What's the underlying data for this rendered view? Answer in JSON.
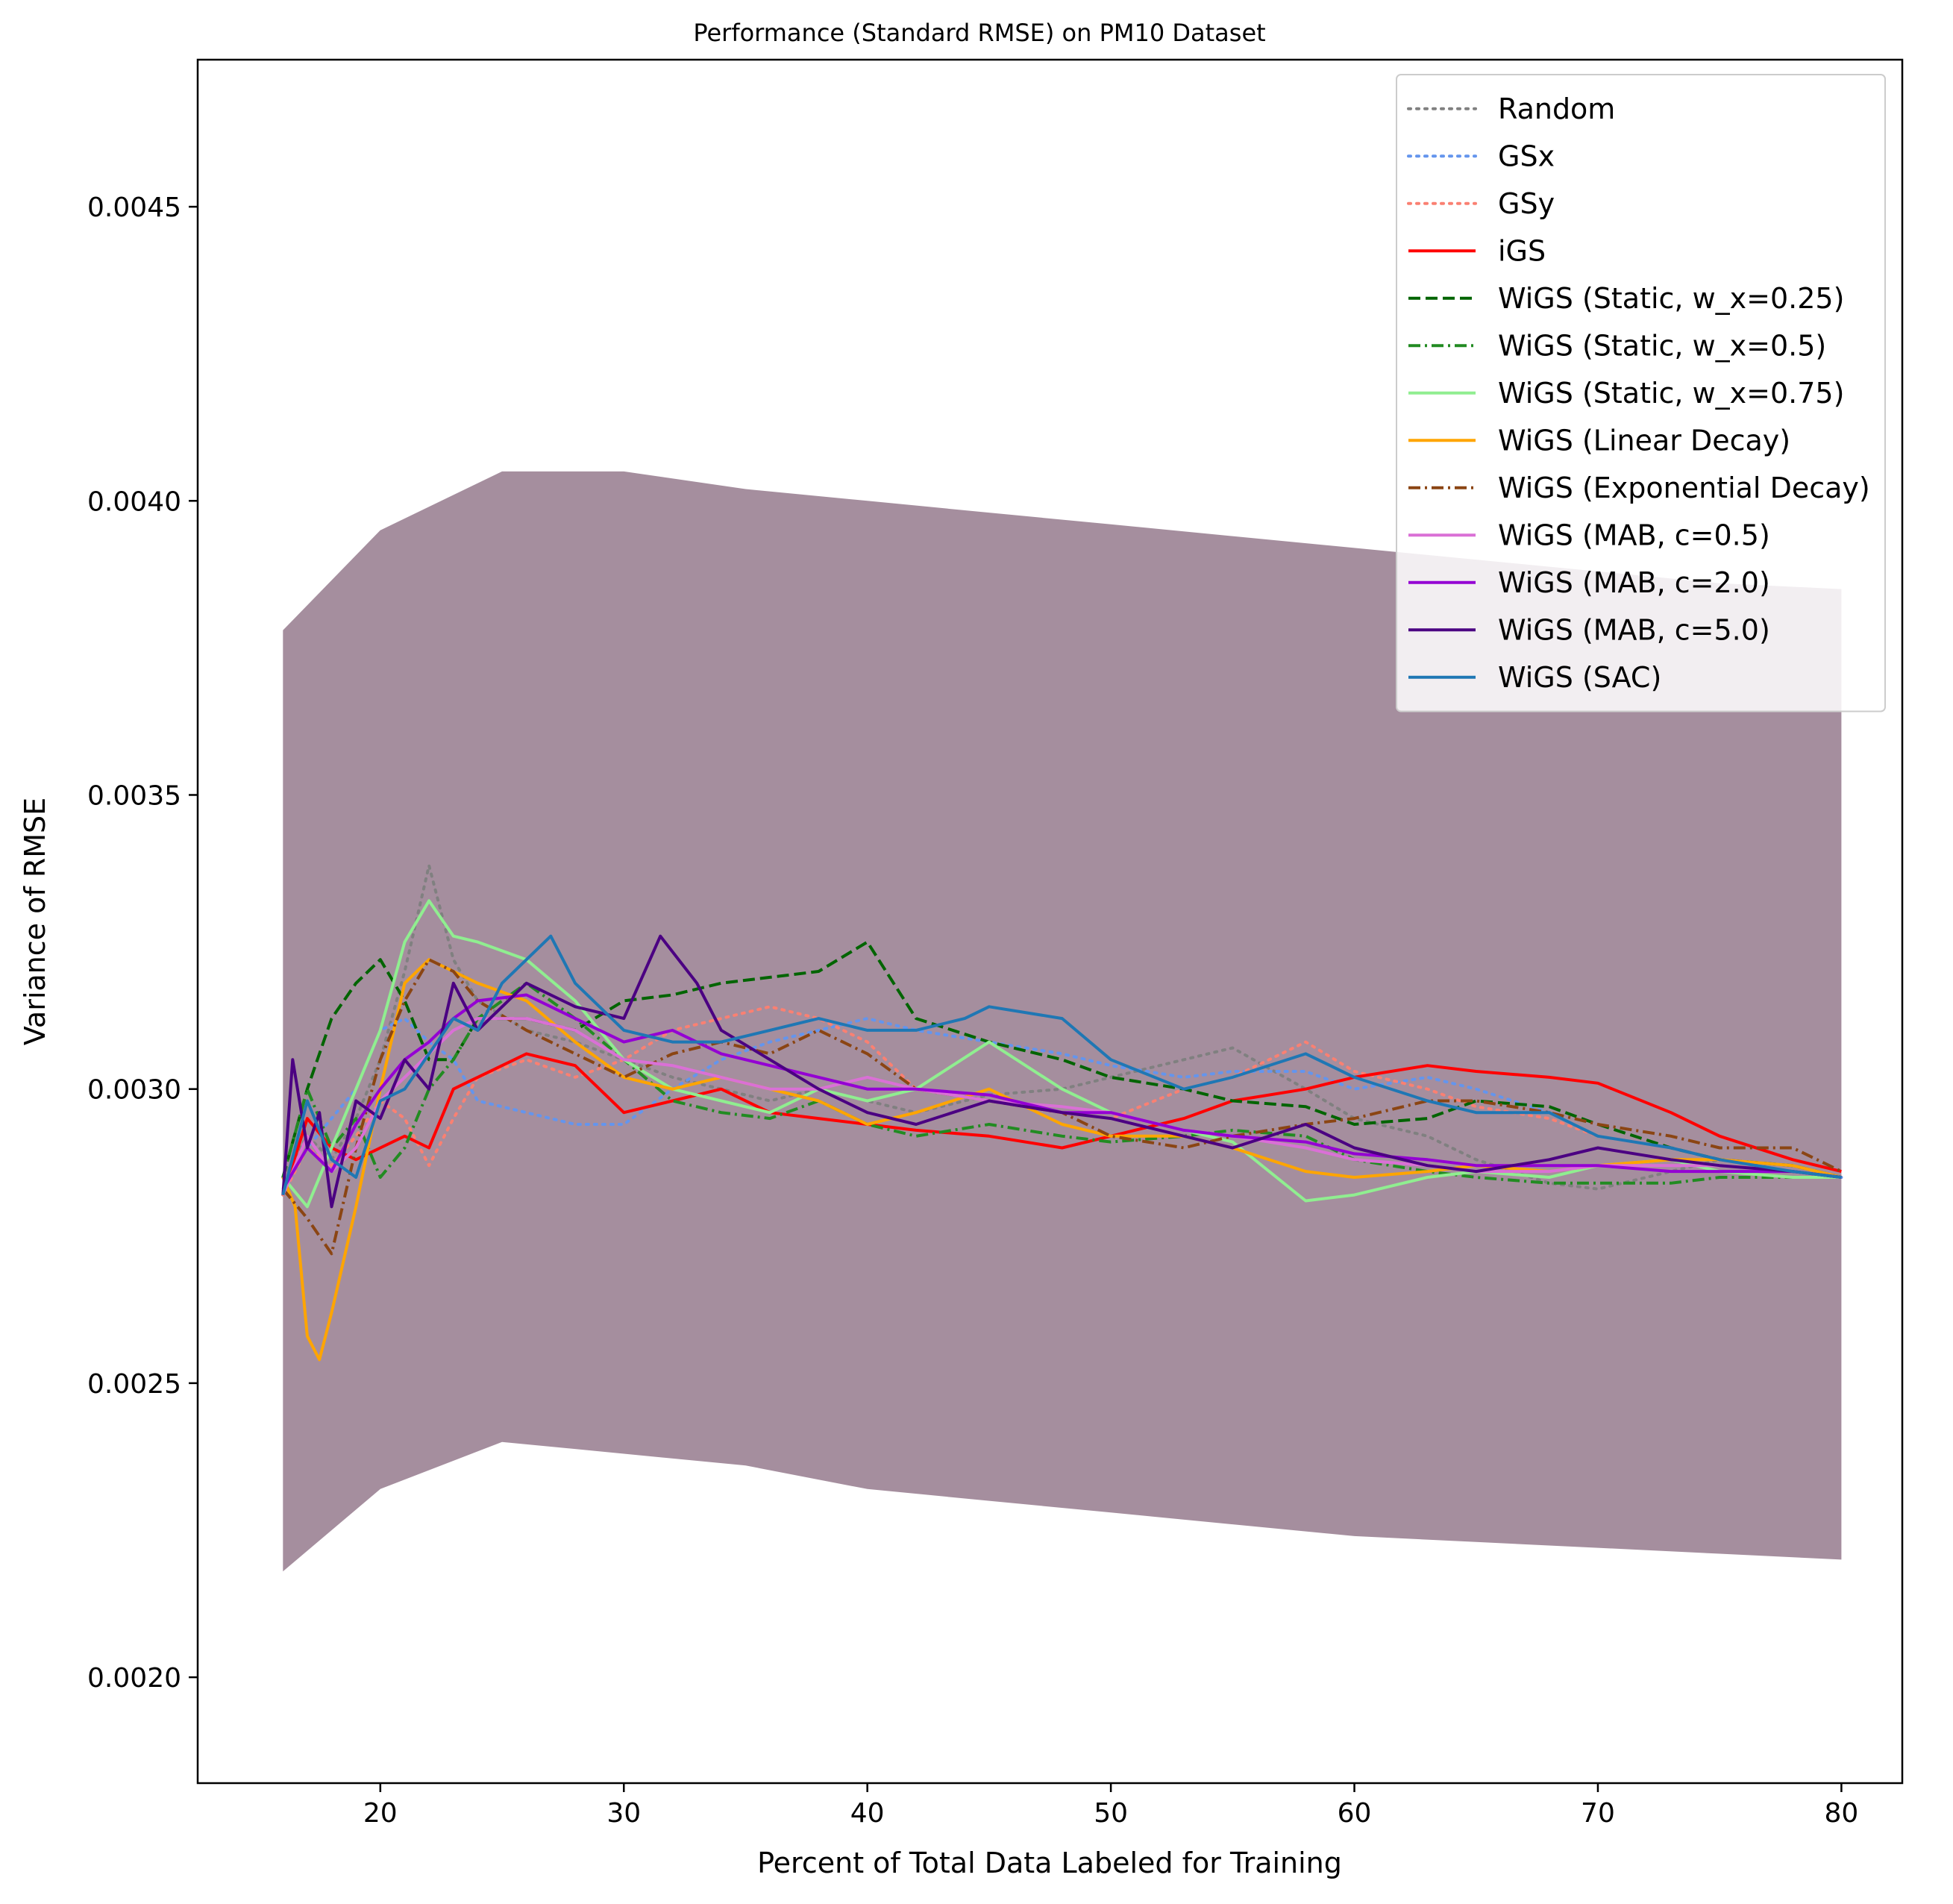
{
  "chart_data": {
    "type": "line",
    "title": "Performance (Standard RMSE) on PM10 Dataset",
    "xlabel": "Percent of Total Data Labeled for Training",
    "ylabel": "Variance of RMSE",
    "xlim": [
      12.5,
      82.5
    ],
    "ylim": [
      0.00182,
      0.00475
    ],
    "xticks": [
      20,
      30,
      40,
      50,
      60,
      70,
      80
    ],
    "xtick_labels": [
      "20",
      "30",
      "40",
      "50",
      "60",
      "70",
      "80"
    ],
    "yticks": [
      0.002,
      0.0025,
      0.003,
      0.0035,
      0.004,
      0.0045
    ],
    "ytick_labels": [
      "0.0020",
      "0.0025",
      "0.0030",
      "0.0035",
      "0.0040",
      "0.0045"
    ],
    "grid": false,
    "legend_position": "top-right",
    "band": {
      "x": [
        16,
        20,
        25,
        30,
        35,
        40,
        45,
        50,
        55,
        60,
        65,
        70,
        75,
        80
      ],
      "lower": [
        0.00218,
        0.00232,
        0.0024,
        0.00238,
        0.00236,
        0.00232,
        0.0023,
        0.00228,
        0.00226,
        0.00224,
        0.00223,
        0.00222,
        0.00221,
        0.0022
      ],
      "upper": [
        0.00378,
        0.00395,
        0.00405,
        0.00405,
        0.00402,
        0.004,
        0.00398,
        0.00396,
        0.00394,
        0.00392,
        0.0039,
        0.00388,
        0.00386,
        0.00385
      ],
      "color": "#9b8294"
    },
    "series": [
      {
        "name": "Random",
        "color": "#808080",
        "dash": "dot",
        "x": [
          16,
          17,
          18,
          19,
          20,
          21,
          22,
          23,
          24,
          26,
          28,
          30,
          32,
          34,
          36,
          38,
          40,
          42,
          45,
          48,
          50,
          53,
          55,
          58,
          60,
          63,
          65,
          68,
          70,
          73,
          75,
          78,
          80
        ],
        "y": [
          0.00285,
          0.00292,
          0.00288,
          0.00295,
          0.00305,
          0.0032,
          0.00338,
          0.00322,
          0.00315,
          0.0031,
          0.00308,
          0.00305,
          0.00302,
          0.003,
          0.00298,
          0.003,
          0.00298,
          0.00296,
          0.00299,
          0.003,
          0.00302,
          0.00305,
          0.00307,
          0.003,
          0.00295,
          0.00292,
          0.00288,
          0.00284,
          0.00283,
          0.00286,
          0.00288,
          0.00287,
          0.00285
        ]
      },
      {
        "name": "GSx",
        "color": "#6495ed",
        "dash": "dot",
        "x": [
          16,
          17,
          18,
          19,
          20,
          21,
          22,
          23,
          24,
          26,
          28,
          30,
          32,
          34,
          36,
          38,
          40,
          42,
          45,
          48,
          50,
          53,
          55,
          58,
          60,
          63,
          65,
          68,
          70,
          73,
          75,
          78,
          80
        ],
        "y": [
          0.00282,
          0.0029,
          0.00295,
          0.003,
          0.0031,
          0.00312,
          0.00308,
          0.00305,
          0.00298,
          0.00296,
          0.00294,
          0.00294,
          0.003,
          0.00305,
          0.00308,
          0.0031,
          0.00312,
          0.0031,
          0.00308,
          0.00306,
          0.00304,
          0.00302,
          0.00303,
          0.00303,
          0.003,
          0.00302,
          0.003,
          0.00296,
          0.00292,
          0.0029,
          0.00288,
          0.00286,
          0.00285
        ]
      },
      {
        "name": "GSy",
        "color": "#fa8072",
        "dash": "dot",
        "x": [
          16,
          17,
          18,
          19,
          20,
          21,
          22,
          23,
          24,
          26,
          28,
          30,
          32,
          34,
          36,
          38,
          40,
          42,
          45,
          48,
          50,
          53,
          55,
          58,
          60,
          63,
          65,
          68,
          70,
          73,
          75,
          78,
          80
        ],
        "y": [
          0.00282,
          0.0029,
          0.00287,
          0.00292,
          0.00298,
          0.00295,
          0.00287,
          0.00295,
          0.00302,
          0.00305,
          0.00302,
          0.00305,
          0.0031,
          0.00312,
          0.00314,
          0.00312,
          0.00308,
          0.003,
          0.00298,
          0.00296,
          0.00295,
          0.003,
          0.00302,
          0.00308,
          0.00303,
          0.003,
          0.00297,
          0.00295,
          0.00292,
          0.0029,
          0.00288,
          0.00286,
          0.00285
        ]
      },
      {
        "name": "iGS",
        "color": "#ff0000",
        "dash": "solid",
        "x": [
          16,
          17,
          18,
          19,
          20,
          21,
          22,
          23,
          24,
          26,
          28,
          30,
          32,
          34,
          36,
          38,
          40,
          42,
          45,
          48,
          50,
          53,
          55,
          58,
          60,
          63,
          65,
          68,
          70,
          73,
          75,
          78,
          80
        ],
        "y": [
          0.00282,
          0.00295,
          0.0029,
          0.00288,
          0.0029,
          0.00292,
          0.0029,
          0.003,
          0.00302,
          0.00306,
          0.00304,
          0.00296,
          0.00298,
          0.003,
          0.00296,
          0.00295,
          0.00294,
          0.00293,
          0.00292,
          0.0029,
          0.00292,
          0.00295,
          0.00298,
          0.003,
          0.00302,
          0.00304,
          0.00303,
          0.00302,
          0.00301,
          0.00296,
          0.00292,
          0.00288,
          0.00286
        ]
      },
      {
        "name": "WiGS (Static, w_x=0.25)",
        "color": "#006400",
        "dash": "dashed",
        "x": [
          16,
          17,
          18,
          19,
          20,
          21,
          22,
          23,
          24,
          26,
          28,
          30,
          32,
          34,
          36,
          38,
          40,
          42,
          45,
          48,
          50,
          53,
          55,
          58,
          60,
          63,
          65,
          68,
          70,
          73,
          75,
          78,
          80
        ],
        "y": [
          0.00285,
          0.003,
          0.00312,
          0.00318,
          0.00322,
          0.00315,
          0.00305,
          0.00305,
          0.00312,
          0.00312,
          0.0031,
          0.00315,
          0.00316,
          0.00318,
          0.00319,
          0.0032,
          0.00325,
          0.00312,
          0.00308,
          0.00305,
          0.00302,
          0.003,
          0.00298,
          0.00297,
          0.00294,
          0.00295,
          0.00298,
          0.00297,
          0.00294,
          0.0029,
          0.00288,
          0.00287,
          0.00285
        ]
      },
      {
        "name": "WiGS (Static, w_x=0.5)",
        "color": "#228b22",
        "dash": "dashdot",
        "x": [
          16,
          17,
          18,
          19,
          20,
          21,
          22,
          23,
          24,
          26,
          28,
          30,
          32,
          34,
          36,
          38,
          40,
          42,
          45,
          48,
          50,
          53,
          55,
          58,
          60,
          63,
          65,
          68,
          70,
          73,
          75,
          78,
          80
        ],
        "y": [
          0.00285,
          0.003,
          0.0029,
          0.00295,
          0.00285,
          0.0029,
          0.003,
          0.00305,
          0.00312,
          0.00318,
          0.00312,
          0.00305,
          0.00298,
          0.00296,
          0.00295,
          0.00298,
          0.00294,
          0.00292,
          0.00294,
          0.00292,
          0.00291,
          0.00292,
          0.00293,
          0.00292,
          0.00288,
          0.00286,
          0.00285,
          0.00284,
          0.00284,
          0.00284,
          0.00285,
          0.00285,
          0.00285
        ]
      },
      {
        "name": "WiGS (Static, w_x=0.75)",
        "color": "#90ee90",
        "dash": "solid",
        "x": [
          16,
          17,
          18,
          19,
          20,
          21,
          22,
          23,
          24,
          26,
          28,
          30,
          32,
          34,
          36,
          38,
          40,
          42,
          45,
          48,
          50,
          53,
          55,
          58,
          60,
          63,
          65,
          68,
          70,
          73,
          75,
          78,
          80
        ],
        "y": [
          0.00285,
          0.0028,
          0.0029,
          0.003,
          0.0031,
          0.00325,
          0.00332,
          0.00326,
          0.00325,
          0.00322,
          0.00315,
          0.00305,
          0.003,
          0.00298,
          0.00296,
          0.003,
          0.00298,
          0.003,
          0.00308,
          0.003,
          0.00296,
          0.00293,
          0.00291,
          0.00281,
          0.00282,
          0.00285,
          0.00286,
          0.00285,
          0.00287,
          0.00288,
          0.00286,
          0.00285,
          0.00285
        ]
      },
      {
        "name": "WiGS (Linear Decay)",
        "color": "#ffa500",
        "dash": "solid",
        "x": [
          16,
          16.5,
          17,
          17.5,
          18,
          19,
          20,
          21,
          22,
          23,
          24,
          26,
          28,
          30,
          32,
          34,
          36,
          38,
          40,
          42,
          45,
          48,
          50,
          53,
          55,
          58,
          60,
          63,
          65,
          68,
          70,
          73,
          75,
          78,
          80
        ],
        "y": [
          0.00285,
          0.0028,
          0.00258,
          0.00254,
          0.00262,
          0.0028,
          0.003,
          0.00318,
          0.00322,
          0.0032,
          0.00318,
          0.00315,
          0.00308,
          0.00302,
          0.003,
          0.00302,
          0.003,
          0.00298,
          0.00294,
          0.00296,
          0.003,
          0.00294,
          0.00292,
          0.00292,
          0.0029,
          0.00286,
          0.00285,
          0.00286,
          0.00287,
          0.00286,
          0.00287,
          0.00288,
          0.00288,
          0.00287,
          0.00285
        ]
      },
      {
        "name": "WiGS (Exponential Decay)",
        "color": "#8b4513",
        "dash": "dashdot",
        "x": [
          16,
          17,
          18,
          19,
          20,
          21,
          22,
          23,
          24,
          26,
          28,
          30,
          32,
          34,
          36,
          38,
          40,
          42,
          45,
          48,
          50,
          53,
          55,
          58,
          60,
          63,
          65,
          68,
          70,
          73,
          75,
          78,
          80
        ],
        "y": [
          0.00283,
          0.00278,
          0.00272,
          0.0029,
          0.00305,
          0.00315,
          0.00322,
          0.0032,
          0.00315,
          0.0031,
          0.00306,
          0.00302,
          0.00306,
          0.00308,
          0.00306,
          0.0031,
          0.00306,
          0.003,
          0.00298,
          0.00296,
          0.00292,
          0.0029,
          0.00292,
          0.00294,
          0.00295,
          0.00298,
          0.00298,
          0.00296,
          0.00294,
          0.00292,
          0.0029,
          0.0029,
          0.00286
        ]
      },
      {
        "name": "WiGS (MAB, c=0.5)",
        "color": "#da70d6",
        "dash": "solid",
        "x": [
          16,
          17,
          18,
          19,
          20,
          21,
          22,
          23,
          24,
          26,
          28,
          30,
          32,
          34,
          36,
          38,
          40,
          42,
          45,
          48,
          50,
          53,
          55,
          58,
          60,
          63,
          65,
          68,
          70,
          73,
          75,
          78,
          80
        ],
        "y": [
          0.00282,
          0.00292,
          0.00286,
          0.0029,
          0.00298,
          0.00302,
          0.00306,
          0.0031,
          0.00312,
          0.00312,
          0.0031,
          0.00305,
          0.00304,
          0.00302,
          0.003,
          0.003,
          0.00302,
          0.003,
          0.00298,
          0.00297,
          0.00296,
          0.00293,
          0.00292,
          0.0029,
          0.00288,
          0.00287,
          0.00286,
          0.00286,
          0.00287,
          0.00287,
          0.00287,
          0.00286,
          0.00285
        ]
      },
      {
        "name": "WiGS (MAB, c=2.0)",
        "color": "#9400d3",
        "dash": "solid",
        "x": [
          16,
          17,
          18,
          19,
          20,
          21,
          22,
          23,
          24,
          26,
          28,
          30,
          32,
          34,
          36,
          38,
          40,
          42,
          45,
          48,
          50,
          53,
          55,
          58,
          60,
          63,
          65,
          68,
          70,
          73,
          75,
          78,
          80
        ],
        "y": [
          0.00283,
          0.0029,
          0.00286,
          0.00294,
          0.003,
          0.00305,
          0.00308,
          0.00312,
          0.00315,
          0.00316,
          0.00312,
          0.00308,
          0.0031,
          0.00306,
          0.00304,
          0.00302,
          0.003,
          0.003,
          0.00299,
          0.00296,
          0.00296,
          0.00293,
          0.00292,
          0.00291,
          0.00289,
          0.00288,
          0.00287,
          0.00287,
          0.00287,
          0.00286,
          0.00286,
          0.00286,
          0.00285
        ]
      },
      {
        "name": "WiGS (MAB, c=5.0)",
        "color": "#4b0082",
        "dash": "solid",
        "x": [
          16,
          16.4,
          17,
          17.5,
          18,
          19,
          20,
          21,
          22,
          23,
          24,
          26,
          28,
          30,
          31.5,
          33,
          34,
          36,
          38,
          40,
          42,
          45,
          48,
          50,
          53,
          55,
          58,
          60,
          63,
          65,
          68,
          70,
          73,
          75,
          78,
          80
        ],
        "y": [
          0.00282,
          0.00305,
          0.0029,
          0.00296,
          0.0028,
          0.00298,
          0.00295,
          0.00305,
          0.003,
          0.00318,
          0.0031,
          0.00318,
          0.00314,
          0.00312,
          0.00326,
          0.00318,
          0.0031,
          0.00305,
          0.003,
          0.00296,
          0.00294,
          0.00298,
          0.00296,
          0.00295,
          0.00292,
          0.0029,
          0.00294,
          0.0029,
          0.00287,
          0.00286,
          0.00288,
          0.0029,
          0.00288,
          0.00287,
          0.00286,
          0.00285
        ]
      },
      {
        "name": "WiGS (SAC)",
        "color": "#1f77b4",
        "dash": "solid",
        "x": [
          16,
          17,
          18,
          19,
          20,
          21,
          22,
          23,
          24,
          25,
          26,
          27,
          28,
          30,
          32,
          34,
          36,
          38,
          40,
          42,
          44,
          45,
          48,
          50,
          53,
          55,
          58,
          60,
          63,
          65,
          68,
          70,
          73,
          75,
          78,
          80
        ],
        "y": [
          0.00282,
          0.00298,
          0.00288,
          0.00285,
          0.00298,
          0.003,
          0.00306,
          0.00312,
          0.0031,
          0.00318,
          0.00322,
          0.00326,
          0.00318,
          0.0031,
          0.00308,
          0.00308,
          0.0031,
          0.00312,
          0.0031,
          0.0031,
          0.00312,
          0.00314,
          0.00312,
          0.00305,
          0.003,
          0.00302,
          0.00306,
          0.00302,
          0.00298,
          0.00296,
          0.00296,
          0.00292,
          0.0029,
          0.00288,
          0.00286,
          0.00285
        ]
      }
    ]
  }
}
